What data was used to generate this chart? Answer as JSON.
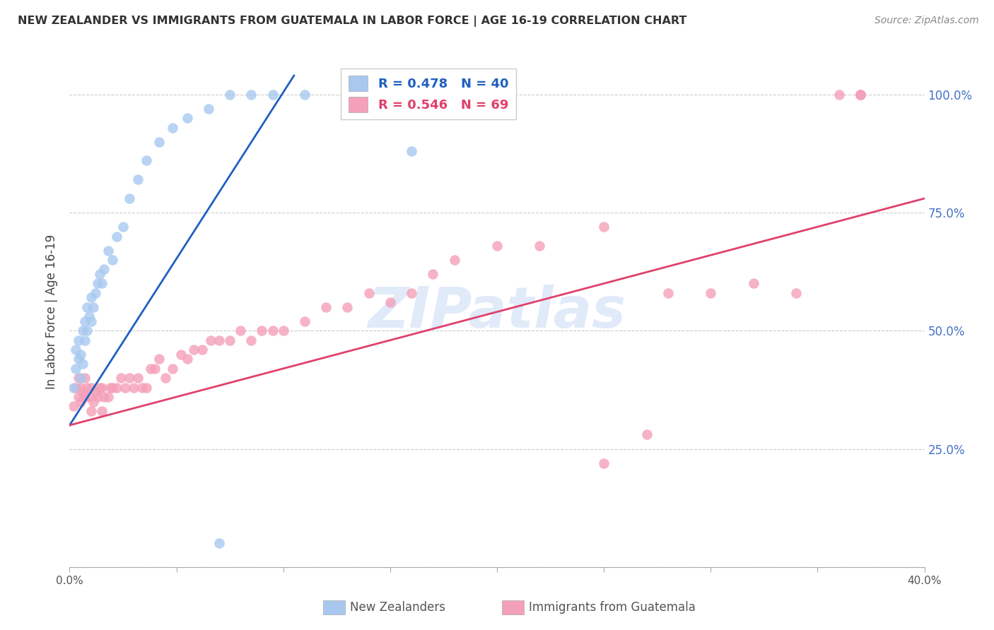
{
  "title": "NEW ZEALANDER VS IMMIGRANTS FROM GUATEMALA IN LABOR FORCE | AGE 16-19 CORRELATION CHART",
  "source": "Source: ZipAtlas.com",
  "ylabel": "In Labor Force | Age 16-19",
  "xlim": [
    0.0,
    0.4
  ],
  "ylim": [
    0.0,
    1.08
  ],
  "ytick_values": [
    0.0,
    0.25,
    0.5,
    0.75,
    1.0
  ],
  "xtick_values": [
    0.0,
    0.05,
    0.1,
    0.15,
    0.2,
    0.25,
    0.3,
    0.35,
    0.4
  ],
  "blue_color": "#a8c8f0",
  "pink_color": "#f4a0b8",
  "blue_line_color": "#2060c0",
  "pink_line_color": "#e0406a",
  "blue_R": 0.478,
  "blue_N": 40,
  "pink_R": 0.546,
  "pink_N": 69,
  "legend_label_blue": "New Zealanders",
  "legend_label_pink": "Immigrants from Guatemala",
  "watermark": "ZIPatlas",
  "right_axis_color": "#4472c4",
  "blue_x": [
    0.002,
    0.003,
    0.003,
    0.004,
    0.004,
    0.005,
    0.005,
    0.006,
    0.006,
    0.007,
    0.007,
    0.008,
    0.008,
    0.009,
    0.01,
    0.01,
    0.011,
    0.012,
    0.013,
    0.014,
    0.015,
    0.016,
    0.018,
    0.02,
    0.022,
    0.025,
    0.028,
    0.032,
    0.036,
    0.042,
    0.048,
    0.055,
    0.065,
    0.075,
    0.085,
    0.095,
    0.11,
    0.13,
    0.16,
    0.07
  ],
  "blue_y": [
    0.38,
    0.42,
    0.46,
    0.44,
    0.48,
    0.4,
    0.45,
    0.43,
    0.5,
    0.48,
    0.52,
    0.5,
    0.55,
    0.53,
    0.52,
    0.57,
    0.55,
    0.58,
    0.6,
    0.62,
    0.6,
    0.63,
    0.67,
    0.65,
    0.7,
    0.72,
    0.78,
    0.82,
    0.86,
    0.9,
    0.93,
    0.95,
    0.97,
    1.0,
    1.0,
    1.0,
    1.0,
    1.0,
    0.88,
    0.05
  ],
  "pink_x": [
    0.002,
    0.003,
    0.004,
    0.004,
    0.005,
    0.005,
    0.006,
    0.007,
    0.007,
    0.008,
    0.009,
    0.01,
    0.01,
    0.011,
    0.012,
    0.013,
    0.014,
    0.015,
    0.015,
    0.016,
    0.018,
    0.019,
    0.02,
    0.022,
    0.024,
    0.026,
    0.028,
    0.03,
    0.032,
    0.034,
    0.036,
    0.038,
    0.04,
    0.042,
    0.045,
    0.048,
    0.052,
    0.055,
    0.058,
    0.062,
    0.066,
    0.07,
    0.075,
    0.08,
    0.085,
    0.09,
    0.095,
    0.1,
    0.11,
    0.12,
    0.13,
    0.14,
    0.15,
    0.16,
    0.17,
    0.18,
    0.2,
    0.22,
    0.25,
    0.28,
    0.3,
    0.32,
    0.34,
    0.36,
    0.37,
    0.37,
    0.37,
    0.27,
    0.25
  ],
  "pink_y": [
    0.34,
    0.38,
    0.36,
    0.4,
    0.35,
    0.38,
    0.37,
    0.36,
    0.4,
    0.38,
    0.36,
    0.33,
    0.38,
    0.35,
    0.37,
    0.36,
    0.38,
    0.33,
    0.38,
    0.36,
    0.36,
    0.38,
    0.38,
    0.38,
    0.4,
    0.38,
    0.4,
    0.38,
    0.4,
    0.38,
    0.38,
    0.42,
    0.42,
    0.44,
    0.4,
    0.42,
    0.45,
    0.44,
    0.46,
    0.46,
    0.48,
    0.48,
    0.48,
    0.5,
    0.48,
    0.5,
    0.5,
    0.5,
    0.52,
    0.55,
    0.55,
    0.58,
    0.56,
    0.58,
    0.62,
    0.65,
    0.68,
    0.68,
    0.72,
    0.58,
    0.58,
    0.6,
    0.58,
    1.0,
    1.0,
    1.0,
    1.0,
    0.28,
    0.22
  ],
  "blue_line_x0": 0.0,
  "blue_line_y0": 0.3,
  "blue_line_x1": 0.105,
  "blue_line_y1": 1.04,
  "pink_line_x0": 0.0,
  "pink_line_y0": 0.3,
  "pink_line_x1": 0.4,
  "pink_line_y1": 0.78
}
